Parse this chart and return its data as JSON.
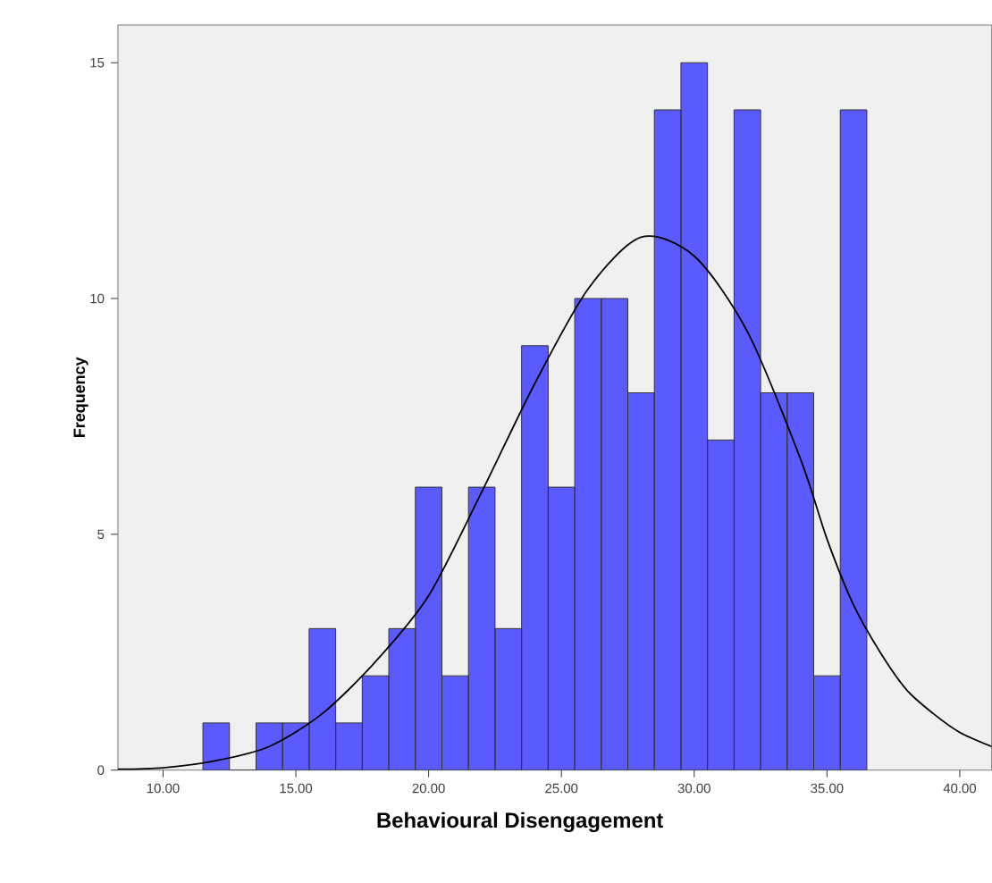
{
  "chart_data": {
    "type": "histogram",
    "xlabel": "Behavioural Disengagement",
    "ylabel": "Frequency",
    "bins": [
      11.5,
      12.5,
      13.5,
      14.5,
      15.5,
      16.5,
      17.5,
      18.5,
      19.5,
      20.5,
      21.5,
      22.5,
      23.5,
      24.5,
      25.5,
      26.5,
      27.5,
      28.5,
      29.5,
      30.5,
      31.5,
      32.5,
      33.5,
      34.5,
      35.5,
      36.5
    ],
    "values": [
      1,
      0,
      1,
      1,
      3,
      1,
      2,
      3,
      6,
      2,
      6,
      3,
      9,
      6,
      10,
      10,
      8,
      14,
      15,
      7,
      14,
      8,
      8,
      2,
      14
    ],
    "color": "#5a5aff",
    "series": [
      {
        "type": "line",
        "color": "#000000",
        "x": [
          8.3,
          10,
          12,
          14,
          16,
          18,
          20,
          22,
          24,
          26,
          28,
          30,
          32,
          34,
          35,
          36,
          37,
          38,
          39,
          40,
          41.2
        ],
        "values": [
          0.02,
          0.05,
          0.2,
          0.5,
          1.2,
          2.3,
          3.7,
          5.9,
          8.2,
          10.2,
          11.3,
          10.9,
          9.3,
          6.6,
          4.9,
          3.5,
          2.5,
          1.7,
          1.2,
          0.8,
          0.5
        ]
      }
    ],
    "xlim": [
      8.3,
      41.2
    ],
    "ylim": [
      0,
      15.8
    ],
    "xticks": [
      {
        "value": 10,
        "label": "10.00"
      },
      {
        "value": 15,
        "label": "15.00"
      },
      {
        "value": 20,
        "label": "20.00"
      },
      {
        "value": 25,
        "label": "25.00"
      },
      {
        "value": 30,
        "label": "30.00"
      },
      {
        "value": 35,
        "label": "35.00"
      },
      {
        "value": 40,
        "label": "40.00"
      }
    ],
    "yticks": [
      0,
      5,
      10,
      15
    ]
  }
}
